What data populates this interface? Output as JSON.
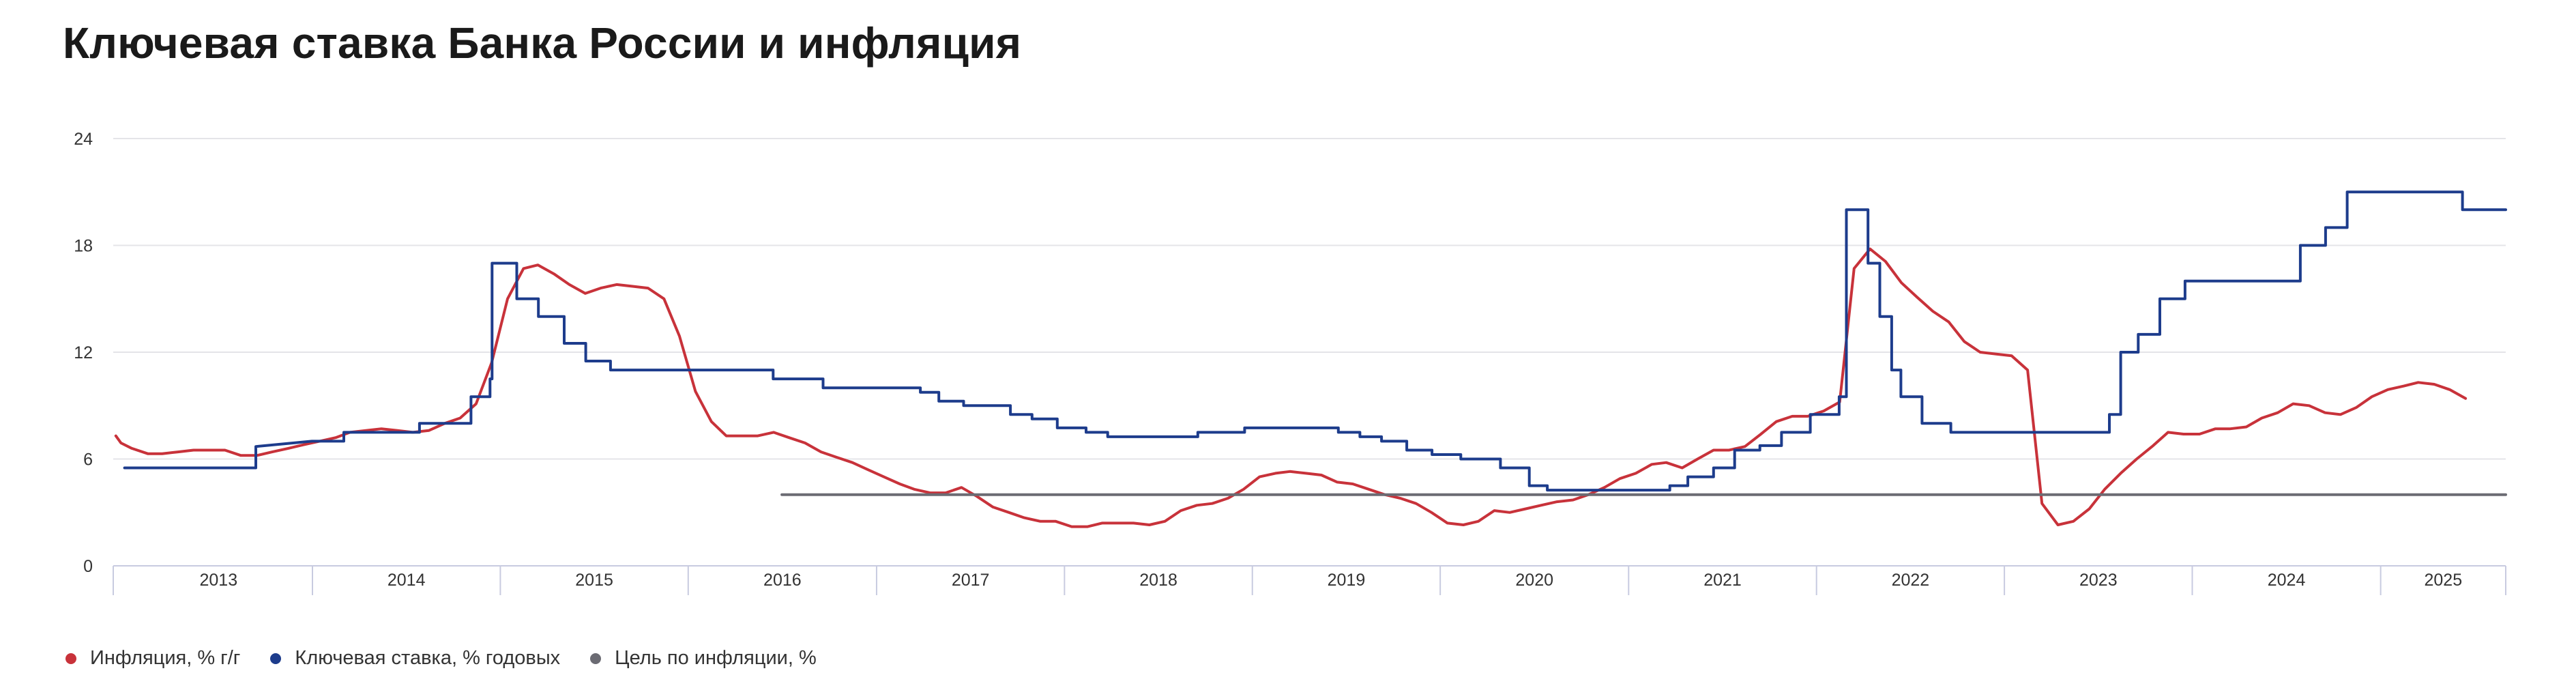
{
  "chart_title": "Ключевая ставка Банка России и инфляция",
  "colors": {
    "inflation": "#c8323a",
    "key_rate": "#1d3c8c",
    "target": "#6b6b73",
    "grid": "#e4e4e8",
    "axis": "#c8cbe0"
  },
  "chart_data": {
    "type": "line",
    "title": "Ключевая ставка Банка России и инфляция",
    "xlabel": "",
    "ylabel": "",
    "x_range": [
      "2012-12-10",
      "2025-09-01"
    ],
    "ylim": [
      0,
      24
    ],
    "y_ticks": [
      0,
      6,
      12,
      18,
      24
    ],
    "x_tick_labels": [
      "2013",
      "2014",
      "2015",
      "2016",
      "2017",
      "2018",
      "2019",
      "2020",
      "2021",
      "2022",
      "2023",
      "2024",
      "2025"
    ],
    "grid": true,
    "legend_position": "bottom-left",
    "series": [
      {
        "name": "Инфляция, % г/г",
        "style": "line",
        "points": [
          [
            "2012-12-15",
            7.3
          ],
          [
            "2012-12-25",
            6.9
          ],
          [
            "2013-01-15",
            6.6
          ],
          [
            "2013-02-15",
            6.3
          ],
          [
            "2013-03-15",
            6.3
          ],
          [
            "2013-04-15",
            6.4
          ],
          [
            "2013-05-15",
            6.5
          ],
          [
            "2013-06-15",
            6.5
          ],
          [
            "2013-07-15",
            6.5
          ],
          [
            "2013-08-15",
            6.2
          ],
          [
            "2013-09-15",
            6.2
          ],
          [
            "2013-10-15",
            6.4
          ],
          [
            "2013-11-15",
            6.6
          ],
          [
            "2013-12-15",
            6.8
          ],
          [
            "2014-01-15",
            7.0
          ],
          [
            "2014-02-15",
            7.2
          ],
          [
            "2014-03-15",
            7.5
          ],
          [
            "2014-04-15",
            7.6
          ],
          [
            "2014-05-15",
            7.7
          ],
          [
            "2014-06-15",
            7.6
          ],
          [
            "2014-07-15",
            7.5
          ],
          [
            "2014-08-15",
            7.6
          ],
          [
            "2014-09-15",
            8.0
          ],
          [
            "2014-10-15",
            8.3
          ],
          [
            "2014-11-15",
            9.1
          ],
          [
            "2014-12-15",
            11.4
          ],
          [
            "2015-01-15",
            15.0
          ],
          [
            "2015-02-15",
            16.7
          ],
          [
            "2015-03-15",
            16.9
          ],
          [
            "2015-04-15",
            16.4
          ],
          [
            "2015-05-15",
            15.8
          ],
          [
            "2015-06-15",
            15.3
          ],
          [
            "2015-07-15",
            15.6
          ],
          [
            "2015-08-15",
            15.8
          ],
          [
            "2015-09-15",
            15.7
          ],
          [
            "2015-10-15",
            15.6
          ],
          [
            "2015-11-15",
            15.0
          ],
          [
            "2015-12-15",
            12.9
          ],
          [
            "2016-01-15",
            9.8
          ],
          [
            "2016-02-15",
            8.1
          ],
          [
            "2016-03-15",
            7.3
          ],
          [
            "2016-04-15",
            7.3
          ],
          [
            "2016-05-15",
            7.3
          ],
          [
            "2016-06-15",
            7.5
          ],
          [
            "2016-07-15",
            7.2
          ],
          [
            "2016-08-15",
            6.9
          ],
          [
            "2016-09-15",
            6.4
          ],
          [
            "2016-10-15",
            6.1
          ],
          [
            "2016-11-15",
            5.8
          ],
          [
            "2016-12-15",
            5.4
          ],
          [
            "2017-01-15",
            5.0
          ],
          [
            "2017-02-15",
            4.6
          ],
          [
            "2017-03-15",
            4.3
          ],
          [
            "2017-04-15",
            4.1
          ],
          [
            "2017-05-15",
            4.1
          ],
          [
            "2017-06-15",
            4.4
          ],
          [
            "2017-07-15",
            3.9
          ],
          [
            "2017-08-15",
            3.3
          ],
          [
            "2017-09-15",
            3.0
          ],
          [
            "2017-10-15",
            2.7
          ],
          [
            "2017-11-15",
            2.5
          ],
          [
            "2017-12-15",
            2.5
          ],
          [
            "2018-01-15",
            2.2
          ],
          [
            "2018-02-15",
            2.2
          ],
          [
            "2018-03-15",
            2.4
          ],
          [
            "2018-04-15",
            2.4
          ],
          [
            "2018-05-15",
            2.4
          ],
          [
            "2018-06-15",
            2.3
          ],
          [
            "2018-07-15",
            2.5
          ],
          [
            "2018-08-15",
            3.1
          ],
          [
            "2018-09-15",
            3.4
          ],
          [
            "2018-10-15",
            3.5
          ],
          [
            "2018-11-15",
            3.8
          ],
          [
            "2018-12-15",
            4.3
          ],
          [
            "2019-01-15",
            5.0
          ],
          [
            "2019-02-15",
            5.2
          ],
          [
            "2019-03-15",
            5.3
          ],
          [
            "2019-04-15",
            5.2
          ],
          [
            "2019-05-15",
            5.1
          ],
          [
            "2019-06-15",
            4.7
          ],
          [
            "2019-07-15",
            4.6
          ],
          [
            "2019-08-15",
            4.3
          ],
          [
            "2019-09-15",
            4.0
          ],
          [
            "2019-10-15",
            3.8
          ],
          [
            "2019-11-15",
            3.5
          ],
          [
            "2019-12-15",
            3.0
          ],
          [
            "2020-01-15",
            2.4
          ],
          [
            "2020-02-15",
            2.3
          ],
          [
            "2020-03-15",
            2.5
          ],
          [
            "2020-04-15",
            3.1
          ],
          [
            "2020-05-15",
            3.0
          ],
          [
            "2020-06-15",
            3.2
          ],
          [
            "2020-07-15",
            3.4
          ],
          [
            "2020-08-15",
            3.6
          ],
          [
            "2020-09-15",
            3.7
          ],
          [
            "2020-10-15",
            4.0
          ],
          [
            "2020-11-15",
            4.4
          ],
          [
            "2020-12-15",
            4.9
          ],
          [
            "2021-01-15",
            5.2
          ],
          [
            "2021-02-15",
            5.7
          ],
          [
            "2021-03-15",
            5.8
          ],
          [
            "2021-04-15",
            5.5
          ],
          [
            "2021-05-15",
            6.0
          ],
          [
            "2021-06-15",
            6.5
          ],
          [
            "2021-07-15",
            6.5
          ],
          [
            "2021-08-15",
            6.7
          ],
          [
            "2021-09-15",
            7.4
          ],
          [
            "2021-10-15",
            8.1
          ],
          [
            "2021-11-15",
            8.4
          ],
          [
            "2021-12-15",
            8.4
          ],
          [
            "2022-01-15",
            8.7
          ],
          [
            "2022-02-15",
            9.2
          ],
          [
            "2022-03-15",
            16.7
          ],
          [
            "2022-04-15",
            17.8
          ],
          [
            "2022-05-15",
            17.1
          ],
          [
            "2022-06-15",
            15.9
          ],
          [
            "2022-07-15",
            15.1
          ],
          [
            "2022-08-15",
            14.3
          ],
          [
            "2022-09-15",
            13.7
          ],
          [
            "2022-10-15",
            12.6
          ],
          [
            "2022-11-15",
            12.0
          ],
          [
            "2022-12-15",
            11.9
          ],
          [
            "2023-01-15",
            11.8
          ],
          [
            "2023-02-15",
            11.0
          ],
          [
            "2023-03-15",
            3.5
          ],
          [
            "2023-04-15",
            2.3
          ],
          [
            "2023-05-15",
            2.5
          ],
          [
            "2023-06-15",
            3.2
          ],
          [
            "2023-07-15",
            4.3
          ],
          [
            "2023-08-15",
            5.2
          ],
          [
            "2023-09-15",
            6.0
          ],
          [
            "2023-10-15",
            6.7
          ],
          [
            "2023-11-15",
            7.5
          ],
          [
            "2023-12-15",
            7.4
          ],
          [
            "2024-01-15",
            7.4
          ],
          [
            "2024-02-15",
            7.7
          ],
          [
            "2024-03-15",
            7.7
          ],
          [
            "2024-04-15",
            7.8
          ],
          [
            "2024-05-15",
            8.3
          ],
          [
            "2024-06-15",
            8.6
          ],
          [
            "2024-07-15",
            9.1
          ],
          [
            "2024-08-15",
            9.0
          ],
          [
            "2024-09-15",
            8.6
          ],
          [
            "2024-10-15",
            8.5
          ],
          [
            "2024-11-15",
            8.9
          ],
          [
            "2024-12-15",
            9.5
          ],
          [
            "2025-01-15",
            9.9
          ],
          [
            "2025-02-15",
            10.1
          ],
          [
            "2025-03-15",
            10.3
          ],
          [
            "2025-04-15",
            10.2
          ],
          [
            "2025-05-15",
            9.9
          ],
          [
            "2025-06-15",
            9.4
          ]
        ]
      },
      {
        "name": "Ключевая ставка, % годовых",
        "style": "step",
        "points": [
          [
            "2013-01-01",
            5.5
          ],
          [
            "2013-09-13",
            5.5
          ],
          [
            "2013-09-13",
            6.7
          ],
          [
            "2013-12-31",
            7.0
          ],
          [
            "2014-03-03",
            7.0
          ],
          [
            "2014-03-03",
            7.5
          ],
          [
            "2014-07-28",
            7.5
          ],
          [
            "2014-07-28",
            8.0
          ],
          [
            "2014-11-05",
            8.0
          ],
          [
            "2014-11-05",
            9.5
          ],
          [
            "2014-12-12",
            9.5
          ],
          [
            "2014-12-12",
            10.5
          ],
          [
            "2014-12-16",
            10.5
          ],
          [
            "2014-12-16",
            17.0
          ],
          [
            "2015-02-02",
            17.0
          ],
          [
            "2015-02-02",
            15.0
          ],
          [
            "2015-03-16",
            15.0
          ],
          [
            "2015-03-16",
            14.0
          ],
          [
            "2015-05-05",
            14.0
          ],
          [
            "2015-05-05",
            12.5
          ],
          [
            "2015-06-16",
            12.5
          ],
          [
            "2015-06-16",
            11.5
          ],
          [
            "2015-08-03",
            11.5
          ],
          [
            "2015-08-03",
            11.0
          ],
          [
            "2016-06-14",
            11.0
          ],
          [
            "2016-06-14",
            10.5
          ],
          [
            "2016-09-19",
            10.5
          ],
          [
            "2016-09-19",
            10.0
          ],
          [
            "2017-03-27",
            10.0
          ],
          [
            "2017-03-27",
            9.75
          ],
          [
            "2017-05-02",
            9.75
          ],
          [
            "2017-05-02",
            9.25
          ],
          [
            "2017-06-19",
            9.25
          ],
          [
            "2017-06-19",
            9.0
          ],
          [
            "2017-09-18",
            9.0
          ],
          [
            "2017-09-18",
            8.5
          ],
          [
            "2017-10-30",
            8.5
          ],
          [
            "2017-10-30",
            8.25
          ],
          [
            "2017-12-18",
            8.25
          ],
          [
            "2017-12-18",
            7.75
          ],
          [
            "2018-02-12",
            7.75
          ],
          [
            "2018-02-12",
            7.5
          ],
          [
            "2018-03-26",
            7.5
          ],
          [
            "2018-03-26",
            7.25
          ],
          [
            "2018-09-17",
            7.25
          ],
          [
            "2018-09-17",
            7.5
          ],
          [
            "2018-12-17",
            7.5
          ],
          [
            "2018-12-17",
            7.75
          ],
          [
            "2019-06-17",
            7.75
          ],
          [
            "2019-06-17",
            7.5
          ],
          [
            "2019-07-29",
            7.5
          ],
          [
            "2019-07-29",
            7.25
          ],
          [
            "2019-09-09",
            7.25
          ],
          [
            "2019-09-09",
            7.0
          ],
          [
            "2019-10-28",
            7.0
          ],
          [
            "2019-10-28",
            6.5
          ],
          [
            "2019-12-16",
            6.5
          ],
          [
            "2019-12-16",
            6.25
          ],
          [
            "2020-02-10",
            6.25
          ],
          [
            "2020-02-10",
            6.0
          ],
          [
            "2020-04-27",
            6.0
          ],
          [
            "2020-04-27",
            5.5
          ],
          [
            "2020-06-22",
            5.5
          ],
          [
            "2020-06-22",
            4.5
          ],
          [
            "2020-07-27",
            4.5
          ],
          [
            "2020-07-27",
            4.25
          ],
          [
            "2021-03-22",
            4.25
          ],
          [
            "2021-03-22",
            4.5
          ],
          [
            "2021-04-26",
            4.5
          ],
          [
            "2021-04-26",
            5.0
          ],
          [
            "2021-06-15",
            5.0
          ],
          [
            "2021-06-15",
            5.5
          ],
          [
            "2021-07-26",
            5.5
          ],
          [
            "2021-07-26",
            6.5
          ],
          [
            "2021-09-13",
            6.5
          ],
          [
            "2021-09-13",
            6.75
          ],
          [
            "2021-10-25",
            6.75
          ],
          [
            "2021-10-25",
            7.5
          ],
          [
            "2021-12-20",
            7.5
          ],
          [
            "2021-12-20",
            8.5
          ],
          [
            "2022-02-14",
            8.5
          ],
          [
            "2022-02-14",
            9.5
          ],
          [
            "2022-02-28",
            9.5
          ],
          [
            "2022-02-28",
            20.0
          ],
          [
            "2022-04-11",
            20.0
          ],
          [
            "2022-04-11",
            17.0
          ],
          [
            "2022-05-04",
            17.0
          ],
          [
            "2022-05-04",
            14.0
          ],
          [
            "2022-05-27",
            14.0
          ],
          [
            "2022-05-27",
            11.0
          ],
          [
            "2022-06-14",
            11.0
          ],
          [
            "2022-06-14",
            9.5
          ],
          [
            "2022-07-25",
            9.5
          ],
          [
            "2022-07-25",
            8.0
          ],
          [
            "2022-09-19",
            8.0
          ],
          [
            "2022-09-19",
            7.5
          ],
          [
            "2023-07-24",
            7.5
          ],
          [
            "2023-07-24",
            8.5
          ],
          [
            "2023-08-15",
            8.5
          ],
          [
            "2023-08-15",
            12.0
          ],
          [
            "2023-09-18",
            12.0
          ],
          [
            "2023-09-18",
            13.0
          ],
          [
            "2023-10-30",
            13.0
          ],
          [
            "2023-10-30",
            15.0
          ],
          [
            "2023-12-18",
            15.0
          ],
          [
            "2023-12-18",
            16.0
          ],
          [
            "2024-07-29",
            16.0
          ],
          [
            "2024-07-29",
            18.0
          ],
          [
            "2024-09-16",
            18.0
          ],
          [
            "2024-09-16",
            19.0
          ],
          [
            "2024-10-28",
            19.0
          ],
          [
            "2024-10-28",
            21.0
          ],
          [
            "2025-06-09",
            21.0
          ],
          [
            "2025-06-09",
            20.0
          ],
          [
            "2025-09-01",
            20.0
          ]
        ]
      },
      {
        "name": "Цель по инфляции, %",
        "style": "line",
        "points": [
          [
            "2016-07-01",
            4.0
          ],
          [
            "2025-09-01",
            4.0
          ]
        ]
      }
    ]
  },
  "legend": [
    {
      "label": "Инфляция, % г/г",
      "color": "#c8323a"
    },
    {
      "label": "Ключевая ставка, % годовых",
      "color": "#1d3c8c"
    },
    {
      "label": "Цель по инфляции, %",
      "color": "#6b6b73"
    }
  ]
}
